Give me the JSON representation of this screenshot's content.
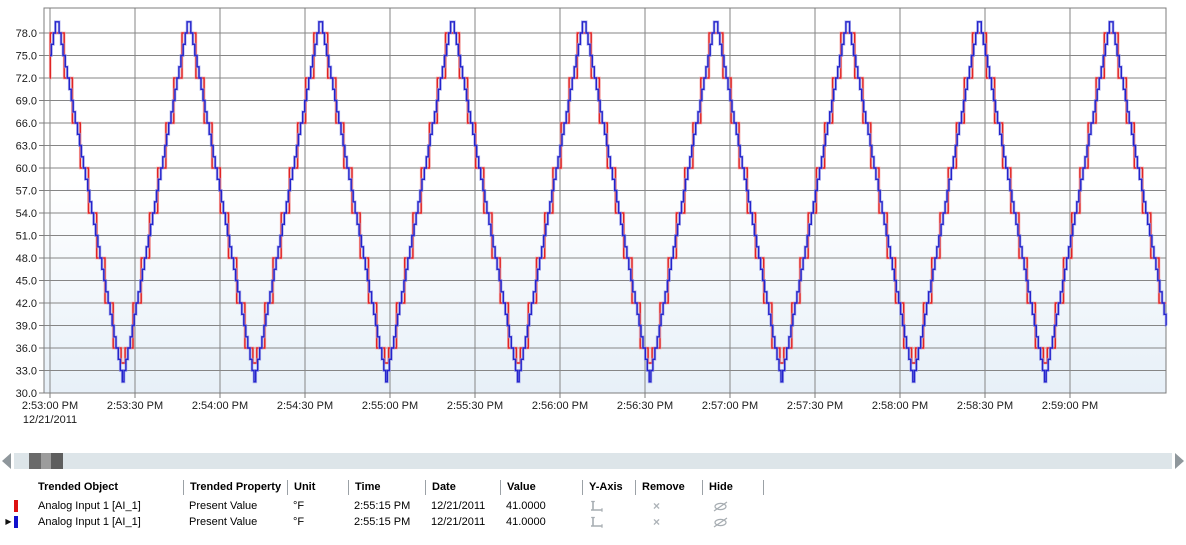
{
  "chart_data": {
    "type": "line",
    "title": "",
    "x_axis": {
      "tick_labels": [
        "2:53:00 PM",
        "2:53:30 PM",
        "2:54:00 PM",
        "2:54:30 PM",
        "2:55:00 PM",
        "2:55:30 PM",
        "2:56:00 PM",
        "2:56:30 PM",
        "2:57:00 PM",
        "2:57:30 PM",
        "2:58:00 PM",
        "2:58:30 PM",
        "2:59:00 PM"
      ],
      "date_label": "12/21/2011",
      "tick_interval_seconds": 30,
      "duration_seconds": 394
    },
    "y_axis": {
      "tick_labels": [
        "78.0",
        "75.0",
        "72.0",
        "69.0",
        "66.0",
        "63.0",
        "60.0",
        "57.0",
        "54.0",
        "51.0",
        "48.0",
        "45.0",
        "42.0",
        "39.0",
        "36.0",
        "33.0",
        "30.0"
      ],
      "min": 30,
      "max": 81.4,
      "tick_step": 3
    },
    "grid": true,
    "legend": "none",
    "colors": {
      "grid": "#868686",
      "border": "#7c7c7c",
      "plot_bg_top": "#ffffff",
      "plot_bg_bottom": "#e7f0f8"
    },
    "waveform": {
      "shape": "triangle",
      "value_min": 31.6,
      "value_max": 80.1,
      "period_seconds": 46.5,
      "first_peak_seconds": 2.5
    },
    "series": [
      {
        "name": "Analog Input 1 [AI_1]",
        "render": "step",
        "color": "#e02424",
        "glow": "#f4a2a2",
        "step_quantization": 6,
        "clamp_min": 34,
        "clamp_max": 78
      },
      {
        "name": "Analog Input 1 [AI_1]",
        "render": "step",
        "color": "#2424cc",
        "glow": "#9a9cea",
        "step_quantization": 1.5,
        "clamp_min": 31.5,
        "clamp_max": 79.5
      }
    ]
  },
  "table": {
    "columns": [
      "Trended Object",
      "Trended Property",
      "Unit",
      "Time",
      "Date",
      "Value",
      "Y-Axis",
      "Remove",
      "Hide"
    ],
    "icons": {
      "row_indicator": "▶",
      "remove_glyph": "×"
    },
    "rows": [
      {
        "selected": false,
        "swatch_color": "#dd1111",
        "trended_object": "Analog Input 1 [AI_1]",
        "trended_property": "Present Value",
        "unit": "°F",
        "time": "2:55:15 PM",
        "date": "12/21/2011",
        "value": "41.0000"
      },
      {
        "selected": true,
        "swatch_color": "#1111cc",
        "trended_object": "Analog Input 1 [AI_1]",
        "trended_property": "Present Value",
        "unit": "°F",
        "time": "2:55:15 PM",
        "date": "12/21/2011",
        "value": "41.0000"
      }
    ]
  }
}
